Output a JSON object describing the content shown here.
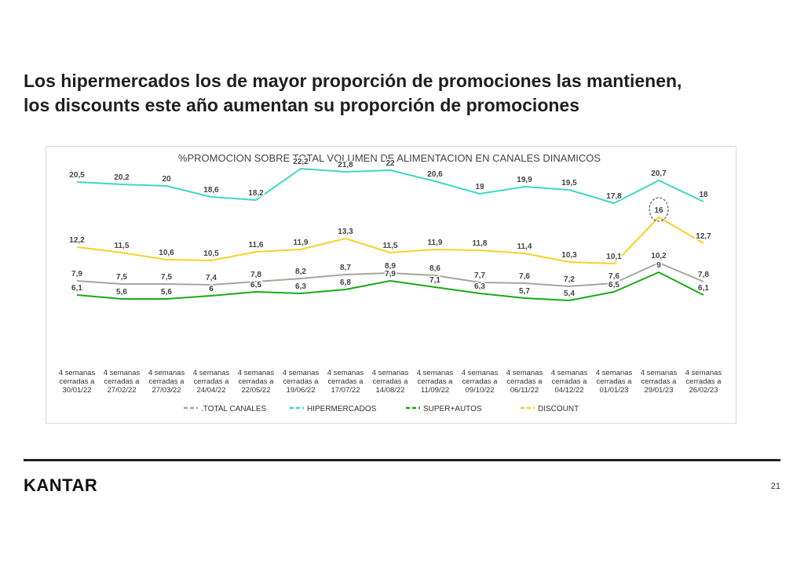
{
  "headline": {
    "line1": "Los hipermercados los de mayor proporción de promociones las mantienen,",
    "line2": "los discounts este año aumentan su proporción de promociones"
  },
  "footer": {
    "logo": "KANTAR",
    "page_number": "21"
  },
  "chart_data": {
    "type": "line",
    "title": "%PROMOCION SOBRE TOTAL VOLUMEN DE ALIMENTACION EN  CANALES DINAMICOS",
    "legend_position": "bottom",
    "grid": false,
    "ylim": [
      0,
      24
    ],
    "categories": [
      [
        "4 semanas",
        "cerradas a",
        "30/01/22"
      ],
      [
        "4 semanas",
        "cerradas a",
        "27/02/22"
      ],
      [
        "4 semanas",
        "cerradas a",
        "27/03/22"
      ],
      [
        "4 semanas",
        "cerradas a",
        "24/04/22"
      ],
      [
        "4 semanas",
        "cerradas a",
        "22/05/22"
      ],
      [
        "4 semanas",
        "cerradas a",
        "19/06/22"
      ],
      [
        "4 semanas",
        "cerradas a",
        "17/07/22"
      ],
      [
        "4 semanas",
        "cerradas a",
        "14/08/22"
      ],
      [
        "4 semanas",
        "cerradas a",
        "11/09/22"
      ],
      [
        "4 semanas",
        "cerradas a",
        "09/10/22"
      ],
      [
        "4 semanas",
        "cerradas a",
        "06/11/22"
      ],
      [
        "4 semanas",
        "cerradas a",
        "04/12/22"
      ],
      [
        "4 semanas",
        "cerradas a",
        "01/01/23"
      ],
      [
        "4 semanas",
        "cerradas a",
        "29/01/23"
      ],
      [
        "4 semanas",
        "cerradas a",
        "26/02/23"
      ]
    ],
    "series": [
      {
        "name": "HIPERMERCADOS",
        "color": "#3fd8c4",
        "values": [
          20.5,
          20.2,
          20,
          18.6,
          18.2,
          22.2,
          21.8,
          22,
          20.6,
          19,
          19.9,
          19.5,
          17.8,
          20.7,
          18
        ],
        "labels": [
          "20,5",
          "20,2",
          "20",
          "18,6",
          "18,2",
          "22,2",
          "21,8",
          "22",
          "20,6",
          "19",
          "19,9",
          "19,5",
          "17,8",
          "20,7",
          "18"
        ]
      },
      {
        "name": "DISCOUNT",
        "color": "#f5d327",
        "values": [
          12.2,
          11.5,
          10.6,
          10.5,
          11.6,
          11.9,
          13.3,
          11.5,
          11.9,
          11.8,
          11.4,
          10.3,
          10.1,
          16,
          12.7
        ],
        "labels": [
          "12,2",
          "11,5",
          "10,6",
          "10,5",
          "11,6",
          "11,9",
          "13,3",
          "11,5",
          "11,9",
          "11,8",
          "11,4",
          "10,3",
          "10,1",
          "16",
          "12,7"
        ],
        "highlight_index": 13
      },
      {
        "name": ".TOTAL CANALES",
        "color": "#a6a69c",
        "values": [
          7.9,
          7.5,
          7.5,
          7.4,
          7.8,
          8.2,
          8.7,
          8.9,
          8.6,
          7.7,
          7.6,
          7.2,
          7.6,
          10.2,
          7.8
        ],
        "labels": [
          "7,9",
          "7,5",
          "7,5",
          "7,4",
          "7,8",
          "8,2",
          "8,7",
          "8,9",
          "8,6",
          "7,7",
          "7,6",
          "7,2",
          "7,6",
          "10,2",
          "7,8"
        ]
      },
      {
        "name": "SUPER+AUTOS",
        "color": "#1aaa14",
        "values": [
          6.1,
          5.6,
          5.6,
          6,
          6.5,
          6.3,
          6.8,
          7.9,
          7.1,
          6.3,
          5.7,
          5.4,
          6.5,
          9,
          6.1
        ],
        "labels": [
          "6,1",
          "5,6",
          "5,6",
          "6",
          "6,5",
          "6,3",
          "6,8",
          "7,9",
          "7,1",
          "6,3",
          "5,7",
          "5,4",
          "6,5",
          "9",
          "6,1"
        ]
      }
    ],
    "legend_order": [
      ".TOTAL CANALES",
      "HIPERMERCADOS",
      "SUPER+AUTOS",
      "DISCOUNT"
    ]
  }
}
